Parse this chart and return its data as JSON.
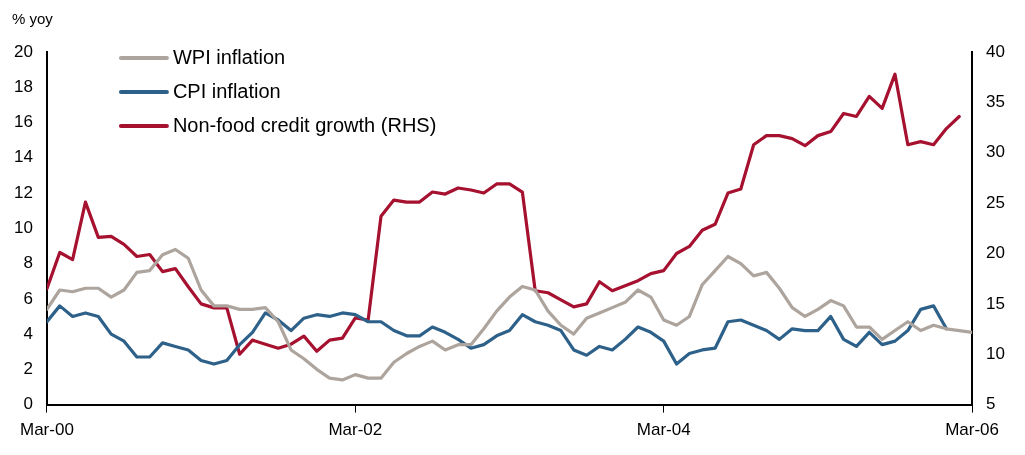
{
  "chart_data": {
    "type": "line",
    "ylabel": "% yoy",
    "legend": "top left",
    "marker": "none",
    "line_style": "solid",
    "x": [
      "2000-03",
      "2000-04",
      "2000-05",
      "2000-06",
      "2000-07",
      "2000-08",
      "2000-09",
      "2000-10",
      "2000-11",
      "2000-12",
      "2001-01",
      "2001-02",
      "2001-03",
      "2001-04",
      "2001-05",
      "2001-06",
      "2001-07",
      "2001-08",
      "2001-09",
      "2001-10",
      "2001-11",
      "2001-12",
      "2002-01",
      "2002-02",
      "2002-03",
      "2002-04",
      "2002-05",
      "2002-06",
      "2002-07",
      "2002-08",
      "2002-09",
      "2002-10",
      "2002-11",
      "2002-12",
      "2003-01",
      "2003-02",
      "2003-03",
      "2003-04",
      "2003-05",
      "2003-06",
      "2003-07",
      "2003-08",
      "2003-09",
      "2003-10",
      "2003-11",
      "2003-12",
      "2004-01",
      "2004-02",
      "2004-03",
      "2004-04",
      "2004-05",
      "2004-06",
      "2004-07",
      "2004-08",
      "2004-09",
      "2004-10",
      "2004-11",
      "2004-12",
      "2005-01",
      "2005-02",
      "2005-03",
      "2005-04",
      "2005-05",
      "2005-06",
      "2005-07",
      "2005-08",
      "2005-09",
      "2005-10",
      "2005-11",
      "2005-12",
      "2006-01",
      "2006-02",
      "2006-03"
    ],
    "xlim": [
      "2000-03",
      "2006-03"
    ],
    "xticks": [
      {
        "value": "2000-03",
        "label": "Mar-00"
      },
      {
        "value": "2002-03",
        "label": "Mar-02"
      },
      {
        "value": "2004-03",
        "label": "Mar-04"
      },
      {
        "value": "2006-03",
        "label": "Mar-06"
      }
    ],
    "ylim": [
      0,
      20
    ],
    "yticks": [
      0,
      2,
      4,
      6,
      8,
      10,
      12,
      14,
      16,
      18,
      20
    ],
    "y2lim": [
      5,
      40
    ],
    "y2ticks": [
      5,
      10,
      15,
      20,
      25,
      30,
      35,
      40
    ],
    "series": [
      {
        "name": "WPI inflation",
        "color": "#ada49d",
        "values": [
          5.4,
          6.5,
          6.4,
          6.6,
          6.6,
          6.1,
          6.5,
          7.5,
          7.6,
          8.5,
          8.8,
          8.3,
          6.5,
          5.6,
          5.6,
          5.4,
          5.4,
          5.5,
          4.7,
          3.1,
          2.6,
          2.0,
          1.5,
          1.4,
          1.7,
          1.5,
          1.5,
          2.4,
          2.9,
          3.3,
          3.6,
          3.1,
          3.4,
          3.4,
          4.3,
          5.3,
          6.1,
          6.7,
          6.5,
          5.3,
          4.5,
          4.0,
          4.9,
          5.2,
          5.5,
          5.8,
          6.5,
          6.1,
          4.8,
          4.5,
          5.0,
          6.8,
          7.6,
          8.4,
          8.0,
          7.3,
          7.5,
          6.6,
          5.5,
          5.0,
          5.4,
          5.9,
          5.6,
          4.4,
          4.4,
          3.7,
          4.2,
          4.7,
          4.2,
          4.5,
          4.3,
          4.2,
          4.1
        ]
      },
      {
        "name": "CPI inflation",
        "color": "#2e6189",
        "values": [
          4.7,
          5.6,
          5.0,
          5.2,
          5.0,
          4.0,
          3.6,
          2.7,
          2.7,
          3.5,
          3.3,
          3.1,
          2.5,
          2.3,
          2.5,
          3.4,
          4.1,
          5.2,
          4.8,
          4.2,
          4.9,
          5.1,
          5.0,
          5.2,
          5.1,
          4.7,
          4.7,
          4.2,
          3.9,
          3.9,
          4.4,
          4.1,
          3.7,
          3.2,
          3.4,
          3.9,
          4.2,
          5.1,
          4.7,
          4.5,
          4.2,
          3.1,
          2.8,
          3.3,
          3.1,
          3.7,
          4.4,
          4.1,
          3.6,
          2.3,
          2.9,
          3.1,
          3.2,
          4.7,
          4.8,
          4.5,
          4.2,
          3.7,
          4.3,
          4.2,
          4.2,
          5.0,
          3.7,
          3.3,
          4.1,
          3.4,
          3.6,
          4.2,
          5.4,
          5.6,
          4.3,
          null,
          null
        ]
      },
      {
        "name": "Non-food credit growth (RHS)",
        "color": "#a5112f",
        "axis": "y2",
        "values": [
          16.5,
          20.1,
          19.4,
          25.1,
          21.6,
          21.7,
          20.9,
          19.7,
          19.9,
          18.2,
          18.5,
          16.7,
          15.0,
          14.6,
          14.6,
          10.0,
          11.4,
          11.0,
          10.6,
          11.0,
          11.8,
          10.3,
          11.4,
          11.6,
          13.6,
          13.4,
          23.7,
          25.3,
          25.1,
          25.1,
          26.1,
          25.9,
          26.5,
          26.3,
          26.0,
          26.9,
          26.9,
          26.1,
          16.3,
          16.1,
          15.4,
          14.7,
          15.0,
          17.2,
          16.3,
          16.8,
          17.3,
          18.0,
          18.3,
          20.0,
          20.7,
          22.3,
          22.9,
          26.0,
          26.4,
          30.8,
          31.7,
          31.7,
          31.4,
          30.7,
          31.7,
          32.1,
          33.9,
          33.6,
          35.6,
          34.4,
          37.8,
          30.8,
          31.1,
          30.8,
          32.4,
          33.6,
          null
        ]
      }
    ]
  }
}
